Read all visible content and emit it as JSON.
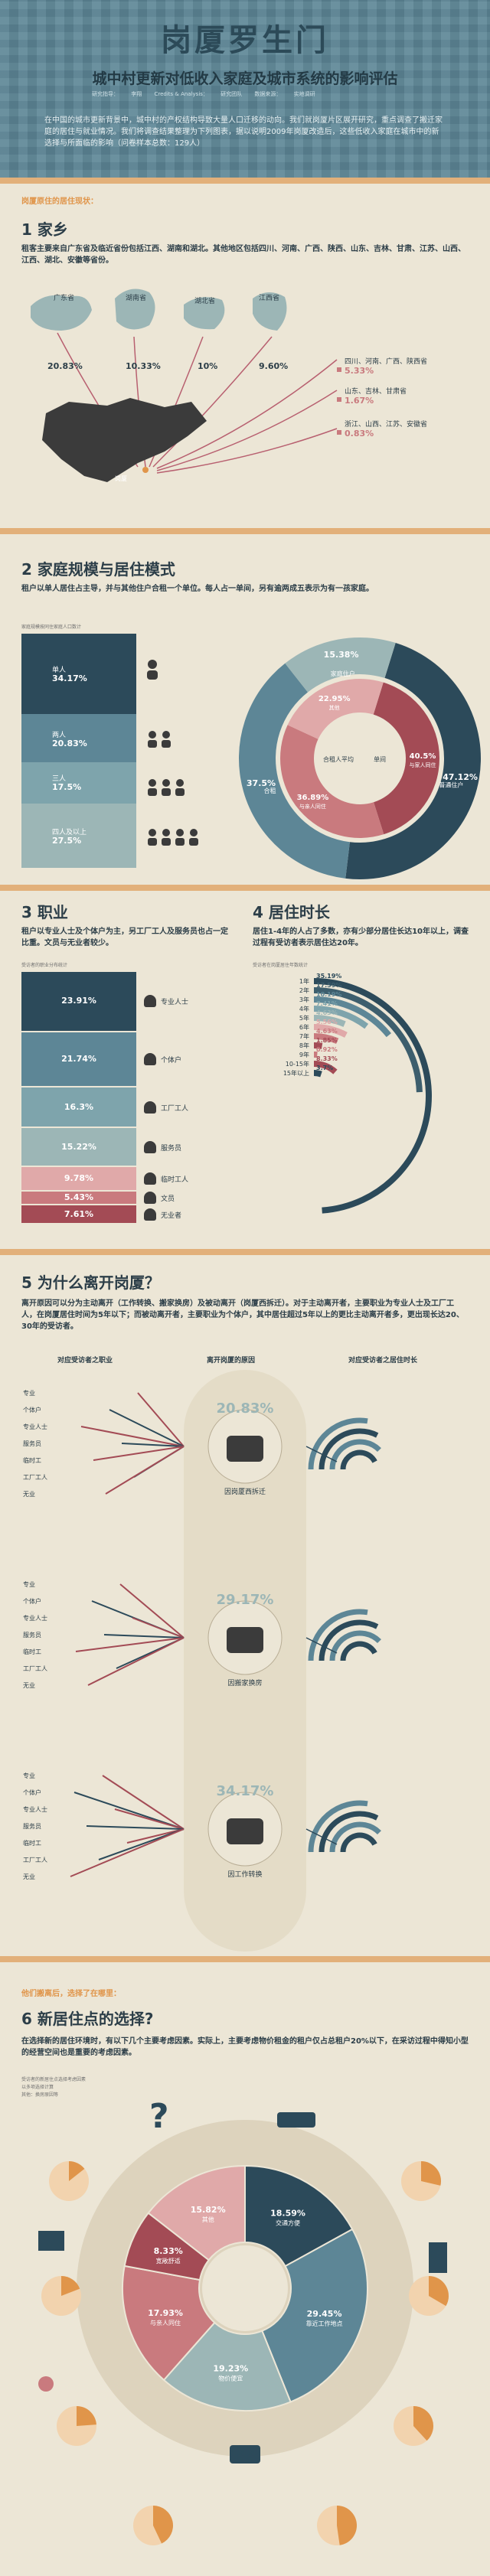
{
  "hero": {
    "title": "岗厦罗生门",
    "subtitle": "城中村更新对低收入家庭及城市系统的影响评估",
    "credits": [
      "研究指导：",
      "李翔",
      "Credits & Analysis：",
      "研究团队",
      "数据来源：",
      "实地调研"
    ],
    "intro": "在中国的城市更新背景中，城中村的产权结构导致大量人口迁移的动向。我们就岗厦片区展开研究，重点调查了搬迁家庭的居住与就业情况。我们将调查结果整理为下列图表，据以说明2009年岗厦改造后，这些低收入家庭在城市中的新选择与所面临的影响（问卷样本总数：129人）"
  },
  "colors": {
    "navy": "#2c4a5a",
    "teal": "#5d8696",
    "sage": "#9cb6b6",
    "pink": "#c97a7e",
    "rose": "#a34b55",
    "orange": "#e0954a",
    "cream": "#ece6d6"
  },
  "s1": {
    "kicker": "岗厦原住的居住现状：",
    "title": "1 家乡",
    "desc": "租客主要来自广东省及临近省份包括江西、湖南和湖北。其他地区包括四川、河南、广西、陕西、山东、吉林、甘肃、江苏、山西、江西、湖北、安徽等省份。",
    "regions": [
      {
        "name": "广东省",
        "pct": "20.83%"
      },
      {
        "name": "湖南省",
        "pct": "10.33%"
      },
      {
        "name": "湖北省",
        "pct": "10%"
      },
      {
        "name": "江西省",
        "pct": "9.60%"
      }
    ],
    "others": [
      {
        "label": "四川、河南、广西、陕西省",
        "pct": "5.33%"
      },
      {
        "label": "山东、吉林、甘肃省",
        "pct": "1.67%"
      },
      {
        "label": "浙江、山西、江苏、安徽省",
        "pct": "0.83%"
      }
    ],
    "map_label": "岗厦"
  },
  "s2": {
    "title": "2 家庭规模与居住模式",
    "desc": "租户以单人居住占主导，并与其他住户合租一个单位。每人占一单间，另有逾两成五表示为有一孩家庭。",
    "note": "家庭规模按同住家庭人口数计",
    "household": [
      {
        "label": "单人",
        "pct": "34.17%"
      },
      {
        "label": "两人",
        "pct": "20.83%"
      },
      {
        "label": "三人",
        "pct": "17.5%"
      },
      {
        "label": "四人及以上",
        "pct": "27.5%"
      }
    ],
    "donut_outer": [
      {
        "label": "普通住户",
        "pct": "47.12%"
      },
      {
        "label": "合租",
        "pct": "37.5%"
      },
      {
        "label": "家庭住户",
        "pct": "15.38%"
      }
    ],
    "donut_inner": [
      {
        "label": "与家人同住",
        "pct": "40.5%"
      },
      {
        "label": "与亲人同住",
        "pct": "36.89%"
      },
      {
        "label": "其他",
        "pct": "22.95%"
      }
    ],
    "donut_side_labels": {
      "left": "合租人平均",
      "right": "单间"
    }
  },
  "s3": {
    "title": "3 职业",
    "desc": "租户以专业人士及个体户为主，另工厂工人及服务员也占一定比重。文员与无业者较少。",
    "note": "受访者的职业分布统计",
    "jobs": [
      {
        "label": "专业人士",
        "pct": "23.91%"
      },
      {
        "label": "个体户",
        "pct": "21.74%"
      },
      {
        "label": "工厂工人",
        "pct": "16.3%"
      },
      {
        "label": "服务员",
        "pct": "15.22%"
      },
      {
        "label": "临时工人",
        "pct": "9.78%"
      },
      {
        "label": "文员",
        "pct": "5.43%"
      },
      {
        "label": "无业者",
        "pct": "7.61%"
      }
    ]
  },
  "s4": {
    "title": "4 居住时长",
    "desc": "居住1-4年的人占了多数，亦有少部分居住长达10年以上，调查过程有受访者表示居住达20年。",
    "note": "受访者在岗厦居住年数统计",
    "years": [
      {
        "label": "1年",
        "pct": "35.19%"
      },
      {
        "label": "2年",
        "pct": "17.59%"
      },
      {
        "label": "3年",
        "pct": "10.19%"
      },
      {
        "label": "4年",
        "pct": "7.41%"
      },
      {
        "label": "5年",
        "pct": "4.63%"
      },
      {
        "label": "6年",
        "pct": "5.56%"
      },
      {
        "label": "7年",
        "pct": "4.63%"
      },
      {
        "label": "8年",
        "pct": "1.85%"
      },
      {
        "label": "9年",
        "pct": "0.92%"
      },
      {
        "label": "10-15年",
        "pct": "8.33%"
      },
      {
        "label": "15年以上",
        "pct": "3.7%"
      }
    ]
  },
  "s5": {
    "title": "5 为什么离开岗厦？",
    "desc": "离开原因可以分为主动离开（工作转换、搬家换房）及被动离开（岗厦西拆迁）。对于主动离开者，主要职业为专业人士及工厂工人，在岗厦居住时间为5年以下；而被动离开者，主要职业为个体户，其中居住超过5年以上的更比主动离开者多，更出现长达20、30年的受访者。",
    "col_left": "对应受访者之职业",
    "col_mid": "离开岗厦的原因",
    "col_right": "对应受访者之居住时长",
    "job_labels": [
      "专业",
      "个体户",
      "专业人士",
      "服务员",
      "临时工",
      "工厂工人",
      "无业"
    ],
    "reasons": [
      {
        "pct": "20.83%",
        "label": "因岗厦西拆迁"
      },
      {
        "pct": "29.17%",
        "label": "因搬家换房"
      },
      {
        "pct": "34.17%",
        "label": "因工作转换"
      }
    ]
  },
  "s6": {
    "kicker": "他们搬离后，选择了在哪里：",
    "title": "6 新居住点的选择?",
    "desc": "在选择新的居住环境时，有以下几个主要考虑因素。实际上，主要考虑物价租金的租户仅占总租户20%以下，在采访过程中得知小型的经营空间也是重要的考虑因素。",
    "notes": [
      "受访者的新居住点选择考虑因素",
      "以多项选择计算",
      "其他：换房原因等"
    ],
    "factors": [
      {
        "label": "交通方便",
        "pct": "18.59%"
      },
      {
        "label": "靠近工作地点",
        "pct": "29.45%"
      },
      {
        "label": "物价便宜",
        "pct": "19.23%"
      },
      {
        "label": "与亲人同住",
        "pct": "17.93%"
      },
      {
        "label": "宽敞舒适",
        "pct": "8.33%"
      },
      {
        "label": "其他",
        "pct": "15.82%"
      }
    ]
  }
}
